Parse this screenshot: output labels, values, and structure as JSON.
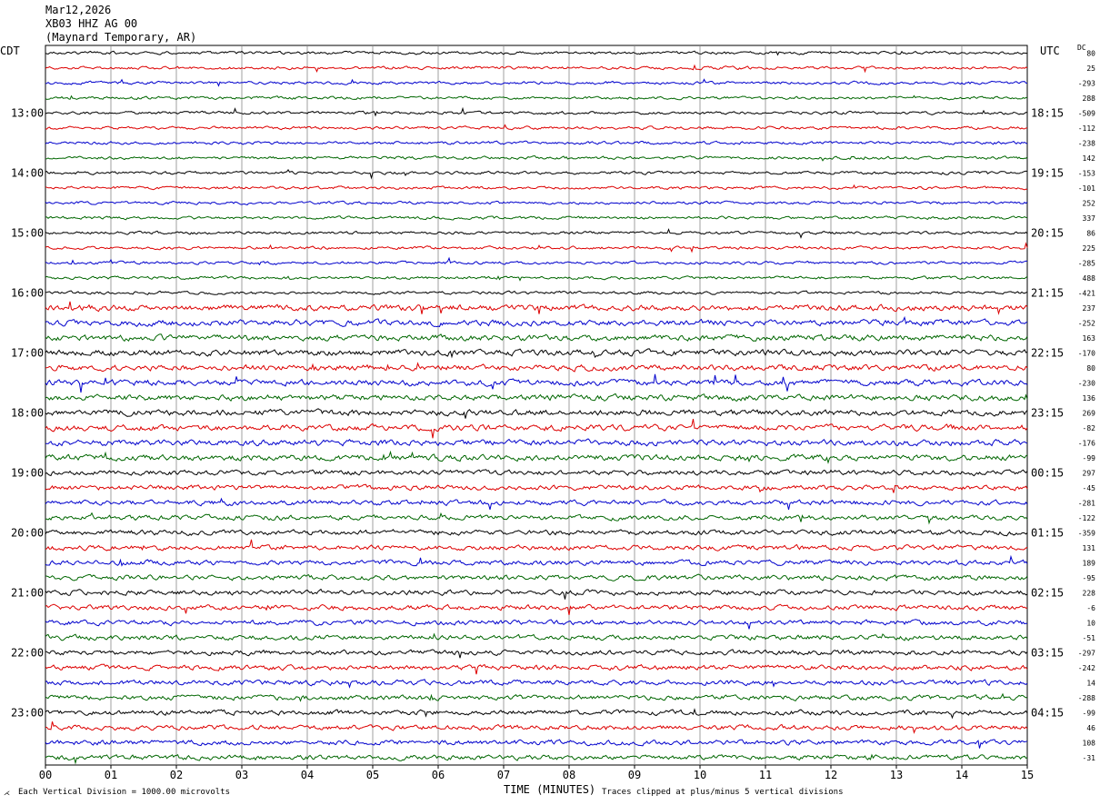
{
  "header": {
    "date": "Mar12,2026",
    "station": "XB03 HHZ AG 00",
    "location": "(Maynard Temporary, AR)"
  },
  "left_zone": "CDT",
  "right_zone": "UTC",
  "dc_label": "DC",
  "footer": {
    "scale_note": "Each Vertical Division = 1000.00 microvolts",
    "xlabel": "TIME (MINUTES)",
    "clip_note": "Traces clipped at plus/minus 5 vertical divisions"
  },
  "chart_data": {
    "type": "line",
    "title": "",
    "xlabel": "TIME (MINUTES)",
    "ylabel": "",
    "xlim": [
      0,
      15
    ],
    "x_ticks": [
      "00",
      "01",
      "02",
      "03",
      "04",
      "05",
      "06",
      "07",
      "08",
      "09",
      "10",
      "11",
      "12",
      "13",
      "14",
      "15"
    ],
    "grid": "vertical lines every minute",
    "trace_colors": [
      "#000000",
      "#dd0000",
      "#0000cc",
      "#006600"
    ],
    "traces_per_hour": 4,
    "trace_count": 48,
    "left_hour_labels": [
      "13:00",
      "14:00",
      "15:00",
      "16:00",
      "17:00",
      "18:00",
      "19:00",
      "20:00",
      "21:00",
      "22:00",
      "23:00"
    ],
    "right_hour_labels": [
      "18:15",
      "19:15",
      "20:15",
      "21:15",
      "22:15",
      "23:15",
      "00:15",
      "01:15",
      "02:15",
      "03:15",
      "04:15"
    ],
    "dc_offsets": [
      "80",
      "25",
      "-293",
      "288",
      "-509",
      "-112",
      "-238",
      "142",
      "-153",
      "-101",
      "252",
      "337",
      "86",
      "225",
      "-285",
      "488",
      "-421",
      "237",
      "-252",
      "163",
      "-170",
      "80",
      "-230",
      "136",
      "269",
      "-82",
      "-176",
      "-99",
      "297",
      "-45",
      "-281",
      "-122",
      "-359",
      "131",
      "189",
      "-95",
      "228",
      "-6",
      "10",
      "-51",
      "-297",
      "-242",
      "14",
      "-288",
      "-99",
      "46",
      "108",
      "-31"
    ]
  }
}
